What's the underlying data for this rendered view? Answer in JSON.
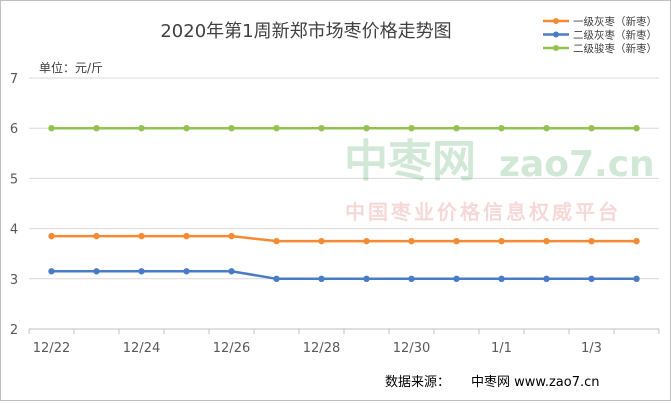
{
  "chart_data": {
    "type": "line",
    "title": "2020年第1周新郑市场枣价格走势图",
    "unit_label": "单位：元/斤",
    "x": [
      "12/22",
      "12/23",
      "12/24",
      "12/25",
      "12/26",
      "12/27",
      "12/28",
      "12/29",
      "12/30",
      "12/31",
      "1/1",
      "1/2",
      "1/3",
      "1/4"
    ],
    "x_tick_labels": [
      "12/22",
      "12/24",
      "12/26",
      "12/28",
      "12/30",
      "1/1",
      "1/3"
    ],
    "ylim": [
      2,
      7
    ],
    "yticks": [
      2,
      3,
      4,
      5,
      6,
      7
    ],
    "grid": true,
    "legend_position": "top-right",
    "series": [
      {
        "name": "一级灰枣（新枣）",
        "color": "#f58a33",
        "values": [
          3.85,
          3.85,
          3.85,
          3.85,
          3.85,
          3.75,
          3.75,
          3.75,
          3.75,
          3.75,
          3.75,
          3.75,
          3.75,
          3.75
        ]
      },
      {
        "name": "二级灰枣（新枣）",
        "color": "#4a7cc6",
        "values": [
          3.15,
          3.15,
          3.15,
          3.15,
          3.15,
          3.0,
          3.0,
          3.0,
          3.0,
          3.0,
          3.0,
          3.0,
          3.0,
          3.0
        ]
      },
      {
        "name": "二级骏枣（新枣）",
        "color": "#94c14f",
        "values": [
          6,
          6,
          6,
          6,
          6,
          6,
          6,
          6,
          6,
          6,
          6,
          6,
          6,
          6
        ]
      }
    ]
  },
  "watermark": {
    "cn": "中枣网",
    "domain": "zao7.cn",
    "slogan": "中国枣业价格信息权威平台",
    "color": "#2e9a45",
    "slogan_color": "#d9534f"
  },
  "footer": {
    "source_label": "数据来源：",
    "source_value": "中枣网 www.zao7.cn"
  }
}
